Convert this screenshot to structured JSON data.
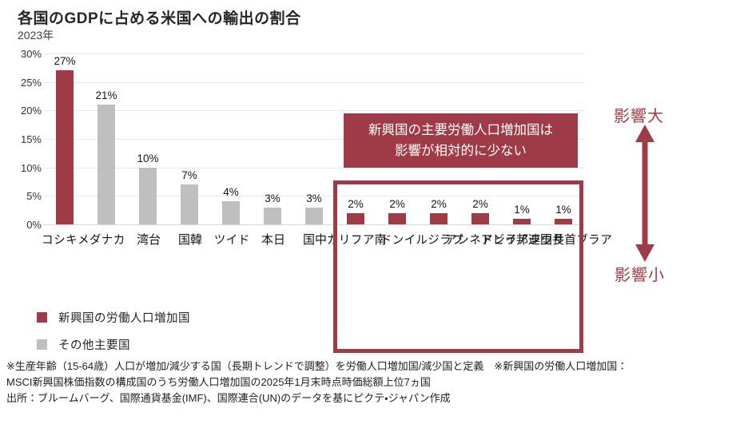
{
  "header": {
    "title": "各国のGDPに占める米国への輸出の割合",
    "subtitle": "2023年"
  },
  "chart_data": {
    "type": "bar",
    "categories": [
      "メキシコ",
      "カナダ",
      "台湾",
      "韓国",
      "ドイツ",
      "日本",
      "中国",
      "南アフリカ",
      "インド",
      "ブラジル",
      "インドネシア",
      "サウジアラビア",
      "アラブ首長国連邦"
    ],
    "values": [
      27,
      21,
      10,
      7,
      4,
      3,
      3,
      2,
      2,
      2,
      2,
      1,
      1
    ],
    "value_labels": [
      "27%",
      "21%",
      "10%",
      "7%",
      "4%",
      "3%",
      "3%",
      "2%",
      "2%",
      "2%",
      "2%",
      "1%",
      "1%"
    ],
    "groups": [
      "emerging",
      "other",
      "other",
      "other",
      "other",
      "other",
      "other",
      "emerging",
      "emerging",
      "emerging",
      "emerging",
      "emerging",
      "emerging"
    ],
    "colors": {
      "emerging": "#9e3b46",
      "other": "#bfbfbf"
    },
    "title": "各国のGDPに占める米国への輸出の割合",
    "subtitle": "2023年",
    "xlabel": "",
    "ylabel": "",
    "ylim": [
      0,
      30
    ],
    "ytick_step": 5,
    "yticks": [
      "30%",
      "25%",
      "20%",
      "15%",
      "10%",
      "5%",
      "0%"
    ],
    "grid": "horizontal",
    "legend_position": "bottom-left",
    "highlighted_category_range": [
      7,
      12
    ]
  },
  "annotations": {
    "callout_line1": "新興国の主要労働人口増加国は",
    "callout_line2": "影響が相対的に少ない",
    "callout_bg": "#9e3b46",
    "impact_high": "影響大",
    "impact_low": "影響小",
    "accent_color": "#9e3b46"
  },
  "legend": {
    "items": [
      {
        "label": "新興国の労働人口増加国",
        "color": "#9e3b46"
      },
      {
        "label": "その他主要国",
        "color": "#bfbfbf"
      }
    ]
  },
  "footnotes": {
    "line1": "※生産年齢（15-64歳）人口が増加/減少する国（長期トレンドで調整）を労働人口増加国/減少国と定義　※新興国の労働人口増加国：",
    "line2": "MSCI新興国株価指数の構成国のうち労働人口増加国の2025年1月末時点時価総額上位7ヵ国",
    "line3": "出所：ブルームバーグ、国際通貨基金(IMF)、国際連合(UN)のデータを基にピクテ・ジャパン作成"
  }
}
